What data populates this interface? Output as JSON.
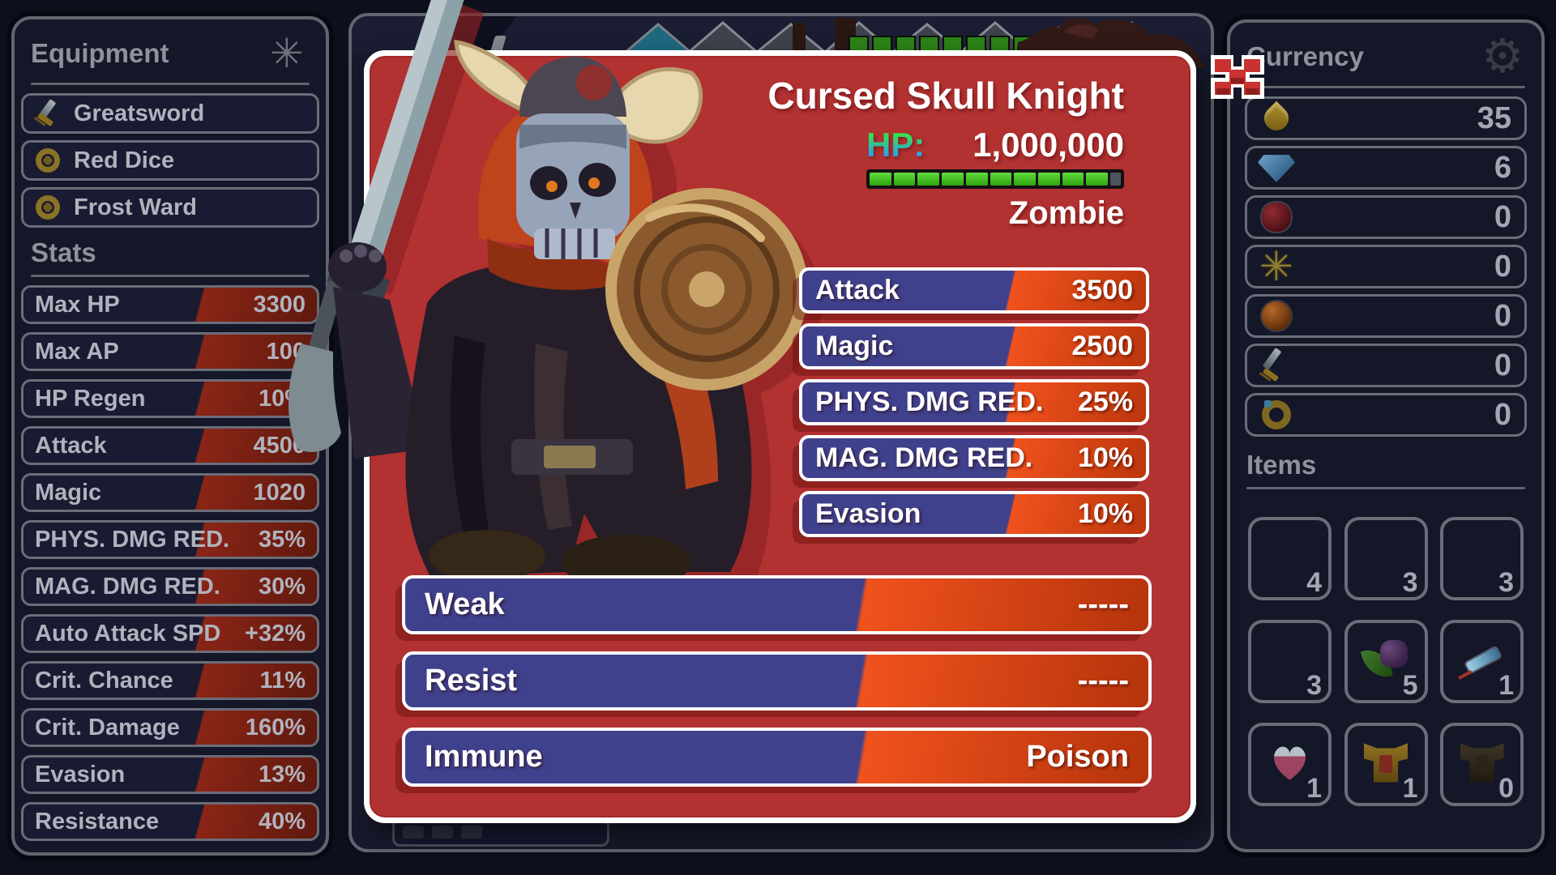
{
  "left_panel": {
    "equipment_title": "Equipment",
    "equipment": [
      {
        "name": "Greatsword",
        "icon": "sword"
      },
      {
        "name": "Red Dice",
        "icon": "amulet"
      },
      {
        "name": "Frost Ward",
        "icon": "amulet"
      }
    ],
    "stats_title": "Stats",
    "stats": [
      {
        "label": "Max HP",
        "value": "3300"
      },
      {
        "label": "Max AP",
        "value": "100"
      },
      {
        "label": "HP Regen",
        "value": "10%"
      },
      {
        "label": "Attack",
        "value": "4500"
      },
      {
        "label": "Magic",
        "value": "1020"
      },
      {
        "label": "PHYS. DMG RED.",
        "value": "35%"
      },
      {
        "label": "MAG. DMG RED.",
        "value": "30%"
      },
      {
        "label": "Auto Attack SPD",
        "value": "+32%"
      },
      {
        "label": "Crit. Chance",
        "value": "11%"
      },
      {
        "label": "Crit. Damage",
        "value": "160%"
      },
      {
        "label": "Evasion",
        "value": "13%"
      },
      {
        "label": "Resistance",
        "value": "40%"
      }
    ]
  },
  "modal": {
    "title": "Cursed Skull Knight",
    "hp_label": "HP:",
    "hp_value": "1,000,000",
    "hp_bar": {
      "segments": 10
    },
    "enemy_type": "Zombie",
    "stats": [
      {
        "label": "Attack",
        "value": "3500"
      },
      {
        "label": "Magic",
        "value": "2500"
      },
      {
        "label": "PHYS. DMG RED.",
        "value": "25%"
      },
      {
        "label": "MAG. DMG RED.",
        "value": "10%"
      },
      {
        "label": "Evasion",
        "value": "10%"
      }
    ],
    "affinities": [
      {
        "label": "Weak",
        "value": "-----"
      },
      {
        "label": "Resist",
        "value": "-----"
      },
      {
        "label": "Immune",
        "value": "Poison"
      }
    ]
  },
  "right_panel": {
    "currency_title": "Currency",
    "currencies": [
      {
        "icon": "gold-drop",
        "value": "35"
      },
      {
        "icon": "blue-gem",
        "value": "6"
      },
      {
        "icon": "red-gem",
        "value": "0"
      },
      {
        "icon": "sun-medal",
        "value": "0"
      },
      {
        "icon": "orange-orb",
        "value": "0"
      },
      {
        "icon": "sword",
        "value": "0"
      },
      {
        "icon": "gold-ring",
        "value": "0"
      }
    ],
    "items_title": "Items",
    "items": [
      {
        "icon": "red-potion",
        "count": "4"
      },
      {
        "icon": "yellow-potion",
        "count": "3"
      },
      {
        "icon": "purple-potion",
        "count": "3"
      },
      {
        "icon": "orange-potion",
        "count": "3"
      },
      {
        "icon": "herb-bundle",
        "count": "5"
      },
      {
        "icon": "blue-syringe",
        "count": "1"
      },
      {
        "icon": "heart-potion",
        "count": "1"
      },
      {
        "icon": "gold-armor",
        "count": "1"
      },
      {
        "icon": "dark-armor",
        "count": "0"
      }
    ]
  },
  "colors": {
    "modal_red": "#b23131",
    "pill_navy": "#3f418c",
    "pill_orange": "#f0521d",
    "hp_green": "#3fcc1e",
    "hp_label_green": "#35e052",
    "hp_label_blue": "#2b9cf2",
    "close_red": "#c93230"
  }
}
